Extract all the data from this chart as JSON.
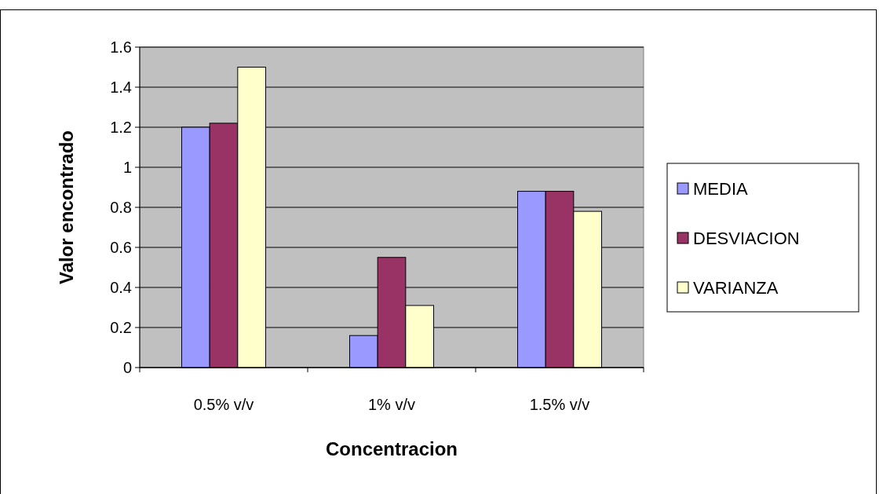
{
  "chart_data": {
    "type": "bar",
    "xlabel": "Concentracion",
    "ylabel": "Valor encontrado",
    "categories": [
      "0.5% v/v",
      "1% v/v",
      "1.5% v/v"
    ],
    "series": [
      {
        "name": "MEDIA",
        "color": "#9999ff",
        "values": [
          1.2,
          0.16,
          0.88
        ]
      },
      {
        "name": "DESVIACION",
        "color": "#993366",
        "values": [
          1.22,
          0.55,
          0.88
        ]
      },
      {
        "name": "VARIANZA",
        "color": "#ffffcc",
        "values": [
          1.5,
          0.31,
          0.78
        ]
      }
    ],
    "ylim": [
      0,
      1.6
    ],
    "yticks": [
      0,
      0.2,
      0.4,
      0.6,
      0.8,
      1,
      1.2,
      1.4,
      1.6
    ],
    "grid": "y",
    "legend": "right"
  }
}
